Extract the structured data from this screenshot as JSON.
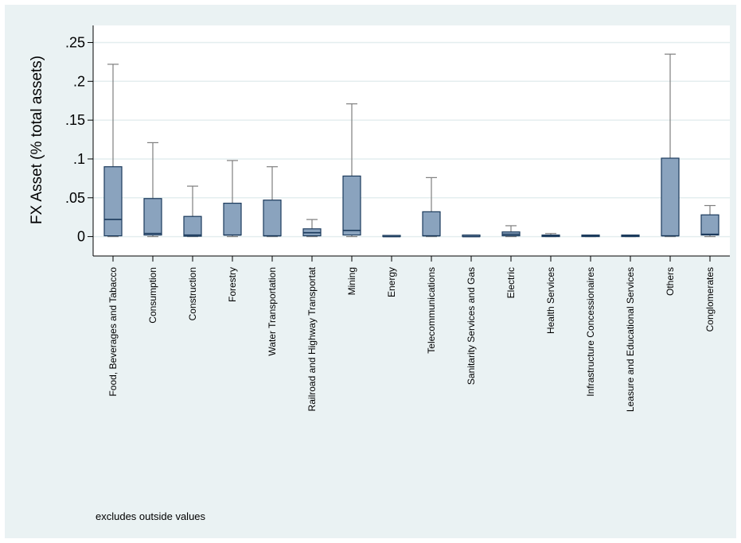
{
  "chart_data": {
    "type": "box",
    "ylabel": "FX Asset (% total assets)",
    "note": "excludes outside values",
    "ylim": [
      -0.025,
      0.272
    ],
    "yticks": [
      {
        "value": 0,
        "label": "0"
      },
      {
        "value": 0.05,
        "label": ".05"
      },
      {
        "value": 0.1,
        "label": ".1"
      },
      {
        "value": 0.15,
        "label": ".15"
      },
      {
        "value": 0.2,
        "label": ".2"
      },
      {
        "value": 0.25,
        "label": ".25"
      }
    ],
    "grid": true,
    "colors": {
      "box": "#8aa3be",
      "box_edge": "#1b3a5c",
      "median": "#1b3a5c",
      "whisker": "#7f7f7f",
      "plot_bg": "#ffffff",
      "frame_bg": "#eaf2f3",
      "gridline": "#e4eeef"
    },
    "categories": [
      "Food, Beverages and Tabacco",
      "Consumption",
      "Construction",
      "Forestry",
      "Water Transportation",
      "Railroad and Highway Transportat",
      "Mining",
      "Energy",
      "Telecommunications",
      "Sanitarity Services and Gas",
      "Electric",
      "Health Services",
      "Infrastructure Concessionaires",
      "Leasure and Educational Services",
      "Others",
      "Conglomerates"
    ],
    "boxes": [
      {
        "min": 0.0,
        "q1": 0.001,
        "median": 0.022,
        "q3": 0.09,
        "max": 0.222
      },
      {
        "min": 0.0,
        "q1": 0.002,
        "median": 0.004,
        "q3": 0.049,
        "max": 0.121
      },
      {
        "min": 0.0,
        "q1": 0.0005,
        "median": 0.002,
        "q3": 0.026,
        "max": 0.065
      },
      {
        "min": 0.0,
        "q1": 0.002,
        "median": 0.002,
        "q3": 0.043,
        "max": 0.098
      },
      {
        "min": 0.0,
        "q1": 0.001,
        "median": 0.001,
        "q3": 0.047,
        "max": 0.09
      },
      {
        "min": 0.0,
        "q1": 0.001,
        "median": 0.005,
        "q3": 0.01,
        "max": 0.022
      },
      {
        "min": 0.0,
        "q1": 0.002,
        "median": 0.008,
        "q3": 0.078,
        "max": 0.171
      },
      {
        "min": 0.0,
        "q1": 0.0,
        "median": 0.0,
        "q3": 0.0005,
        "max": 0.0005
      },
      {
        "min": 0.0,
        "q1": 0.001,
        "median": 0.001,
        "q3": 0.032,
        "max": 0.076
      },
      {
        "min": 0.0,
        "q1": 0.0,
        "median": 0.0,
        "q3": 0.002,
        "max": 0.002
      },
      {
        "min": 0.0,
        "q1": 0.001,
        "median": 0.003,
        "q3": 0.006,
        "max": 0.014
      },
      {
        "min": 0.0,
        "q1": 0.0,
        "median": 0.001,
        "q3": 0.002,
        "max": 0.004
      },
      {
        "min": 0.0,
        "q1": 0.0,
        "median": 0.001,
        "q3": 0.002,
        "max": 0.002
      },
      {
        "min": 0.0,
        "q1": 0.0,
        "median": 0.001,
        "q3": 0.002,
        "max": 0.002
      },
      {
        "min": 0.0,
        "q1": 0.001,
        "median": 0.001,
        "q3": 0.101,
        "max": 0.235
      },
      {
        "min": 0.0,
        "q1": 0.002,
        "median": 0.003,
        "q3": 0.028,
        "max": 0.04
      }
    ]
  }
}
